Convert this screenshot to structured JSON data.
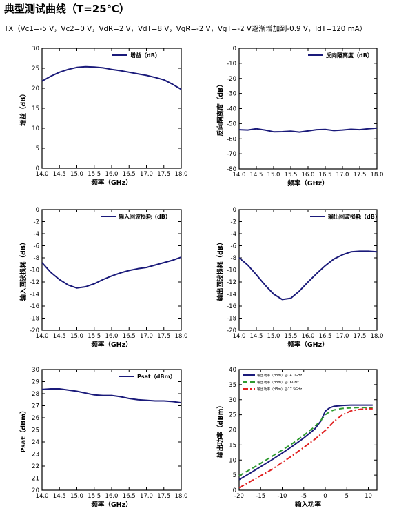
{
  "page": {
    "title": "典型测试曲线（T=25℃）",
    "conditions": "TX（Vc1=-5 V，Vc2=0 V，VdR=2 V，VdT=8 V，VgR=-2 V，VgT=-2 V逐渐增加到-0.9 V，IdT=120 mA）"
  },
  "colors": {
    "navy": "#1a1a7a",
    "green": "#2e9a2e",
    "red": "#e02020"
  },
  "chart_data": [
    {
      "type": "line",
      "xlabel": "频率（GHz）",
      "ylabel": "增益（dB）",
      "xlim": [
        14.0,
        18.0
      ],
      "ylim": [
        0,
        30
      ],
      "xticks": [
        "14.0",
        "14.5",
        "15.0",
        "15.5",
        "16.0",
        "16.5",
        "17.0",
        "17.5",
        "18.0"
      ],
      "yticks": [
        "0",
        "5",
        "10",
        "15",
        "20",
        "25",
        "30"
      ],
      "legend_position": "top-right",
      "series": [
        {
          "name": "增益（dB）",
          "color": "#1a1a7a",
          "style": "solid",
          "x": [
            14.0,
            14.25,
            14.5,
            14.75,
            15.0,
            15.25,
            15.5,
            15.75,
            16.0,
            16.25,
            16.5,
            16.75,
            17.0,
            17.25,
            17.5,
            17.75,
            18.0
          ],
          "y": [
            21.8,
            23.0,
            24.0,
            24.7,
            25.2,
            25.4,
            25.3,
            25.1,
            24.7,
            24.4,
            24.0,
            23.6,
            23.2,
            22.7,
            22.1,
            21.0,
            19.7
          ]
        }
      ]
    },
    {
      "type": "line",
      "xlabel": "频率（GHz）",
      "ylabel": "反向隔离度（dB）",
      "xlim": [
        14.0,
        18.0
      ],
      "ylim": [
        -80,
        0
      ],
      "xticks": [
        "14.0",
        "14.5",
        "15.0",
        "15.5",
        "16.0",
        "16.5",
        "17.0",
        "17.5",
        "18.0"
      ],
      "yticks": [
        "0",
        "-10",
        "-20",
        "-30",
        "-40",
        "-50",
        "-60",
        "-70",
        "-80"
      ],
      "legend_position": "top-right",
      "series": [
        {
          "name": "反向隔离度（dB）",
          "color": "#1a1a7a",
          "style": "solid",
          "x": [
            14.0,
            14.25,
            14.5,
            14.75,
            15.0,
            15.25,
            15.5,
            15.75,
            16.0,
            16.25,
            16.5,
            16.75,
            17.0,
            17.25,
            17.5,
            17.75,
            18.0
          ],
          "y": [
            -54.0,
            -54.2,
            -53.4,
            -54.2,
            -55.4,
            -55.3,
            -55.0,
            -55.6,
            -54.8,
            -54.0,
            -53.8,
            -54.6,
            -54.2,
            -53.7,
            -54.0,
            -53.4,
            -52.9
          ]
        }
      ]
    },
    {
      "type": "line",
      "xlabel": "频率（GHz）",
      "ylabel": "输入回波损耗（dB）",
      "xlim": [
        14.0,
        18.0
      ],
      "ylim": [
        -20,
        0
      ],
      "xticks": [
        "14.0",
        "14.5",
        "15.0",
        "15.5",
        "16.0",
        "16.5",
        "17.0",
        "17.5",
        "18.0"
      ],
      "yticks": [
        "0",
        "-2",
        "-4",
        "-6",
        "-8",
        "-10",
        "-12",
        "-14",
        "-16",
        "-18",
        "-20"
      ],
      "legend_position": "top-right",
      "series": [
        {
          "name": "输入回波损耗（dB）",
          "color": "#1a1a7a",
          "style": "solid",
          "x": [
            14.0,
            14.25,
            14.5,
            14.75,
            15.0,
            15.25,
            15.5,
            15.75,
            16.0,
            16.25,
            16.5,
            16.75,
            17.0,
            17.25,
            17.5,
            17.75,
            18.0
          ],
          "y": [
            -8.8,
            -10.4,
            -11.6,
            -12.5,
            -13.0,
            -12.8,
            -12.3,
            -11.6,
            -11.0,
            -10.5,
            -10.1,
            -9.8,
            -9.6,
            -9.2,
            -8.8,
            -8.4,
            -7.9
          ]
        }
      ]
    },
    {
      "type": "line",
      "xlabel": "频率（GHz）",
      "ylabel": "输出回波损耗（dB）",
      "xlim": [
        14.0,
        18.0
      ],
      "ylim": [
        -20,
        0
      ],
      "xticks": [
        "14.0",
        "14.5",
        "15.0",
        "15.5",
        "16.0",
        "16.5",
        "17.0",
        "17.5",
        "18.0"
      ],
      "yticks": [
        "0",
        "-2",
        "-4",
        "-6",
        "-8",
        "-10",
        "-12",
        "-14",
        "-16",
        "-18",
        "-20"
      ],
      "legend_position": "top-right",
      "series": [
        {
          "name": "输出回波损耗（dB）",
          "color": "#1a1a7a",
          "style": "solid",
          "x": [
            14.0,
            14.25,
            14.5,
            14.75,
            15.0,
            15.25,
            15.5,
            15.75,
            16.0,
            16.25,
            16.5,
            16.75,
            17.0,
            17.25,
            17.5,
            17.75,
            18.0
          ],
          "y": [
            -8.0,
            -9.2,
            -10.8,
            -12.5,
            -14.0,
            -14.9,
            -14.7,
            -13.5,
            -12.0,
            -10.6,
            -9.3,
            -8.2,
            -7.5,
            -7.0,
            -6.9,
            -6.9,
            -7.0
          ]
        }
      ]
    },
    {
      "type": "line",
      "xlabel": "频率（GHz）",
      "ylabel": "Psat（dBm）",
      "xlim": [
        14.0,
        18.0
      ],
      "ylim": [
        20,
        30
      ],
      "xticks": [
        "14.0",
        "14.5",
        "15.0",
        "15.5",
        "16.0",
        "16.5",
        "17.0",
        "17.5",
        "18.0"
      ],
      "yticks": [
        "20",
        "21",
        "22",
        "23",
        "24",
        "25",
        "26",
        "27",
        "28",
        "29",
        "30"
      ],
      "legend_position": "top-right",
      "series": [
        {
          "name": "Psat（dBm）",
          "color": "#1a1a7a",
          "style": "solid",
          "x": [
            14.0,
            14.25,
            14.5,
            14.75,
            15.0,
            15.25,
            15.5,
            15.75,
            16.0,
            16.25,
            16.5,
            16.75,
            17.0,
            17.25,
            17.5,
            17.75,
            18.0
          ],
          "y": [
            28.35,
            28.4,
            28.4,
            28.3,
            28.2,
            28.05,
            27.9,
            27.85,
            27.85,
            27.75,
            27.6,
            27.5,
            27.45,
            27.4,
            27.4,
            27.35,
            27.25
          ]
        }
      ]
    },
    {
      "type": "line",
      "xlabel": "输入功率",
      "ylabel": "输出功率（dBm）",
      "xlim": [
        -20,
        12
      ],
      "ylim": [
        0,
        40
      ],
      "xticks": [
        "-20",
        "-15",
        "-10",
        "-5",
        "0",
        "5",
        "10"
      ],
      "xtick_values": [
        -20,
        -15,
        -10,
        -5,
        0,
        5,
        10
      ],
      "yticks": [
        "0",
        "5",
        "10",
        "15",
        "20",
        "25",
        "30",
        "35",
        "40"
      ],
      "legend_position": "top-left",
      "series": [
        {
          "name": "输出功率（dBm）@14.1GHz",
          "color": "#1a1a7a",
          "style": "solid",
          "x": [
            -20,
            -17.5,
            -15,
            -12.5,
            -10,
            -7.5,
            -5,
            -2.5,
            -1,
            0,
            1,
            2,
            4,
            6,
            8,
            10,
            11
          ],
          "y": [
            3.5,
            5.6,
            7.8,
            10.0,
            12.3,
            14.7,
            17.3,
            20.2,
            23.0,
            26.2,
            27.3,
            27.8,
            28.1,
            28.2,
            28.2,
            28.2,
            28.2
          ]
        },
        {
          "name": "输出功率（dBm）@16GHz",
          "color": "#2e9a2e",
          "style": "dashed",
          "x": [
            -20,
            -17.5,
            -15,
            -12.5,
            -10,
            -7.5,
            -5,
            -2.5,
            -1,
            0,
            1,
            2,
            4,
            6,
            8,
            10,
            11
          ],
          "y": [
            4.8,
            6.8,
            8.9,
            11.1,
            13.3,
            15.6,
            18.2,
            21.0,
            23.2,
            25.0,
            26.0,
            26.6,
            27.1,
            27.3,
            27.4,
            27.4,
            27.4
          ]
        },
        {
          "name": "输出功率（dBm）@17.5GHz",
          "color": "#e02020",
          "style": "dashdot",
          "x": [
            -20,
            -17.5,
            -15,
            -12.5,
            -10,
            -7.5,
            -5,
            -2.5,
            0,
            2,
            4,
            6,
            8,
            10,
            11
          ],
          "y": [
            0.8,
            2.8,
            4.8,
            6.8,
            9.2,
            11.6,
            14.2,
            16.8,
            19.8,
            22.8,
            25.0,
            26.3,
            26.8,
            27.0,
            27.0
          ]
        }
      ]
    }
  ]
}
